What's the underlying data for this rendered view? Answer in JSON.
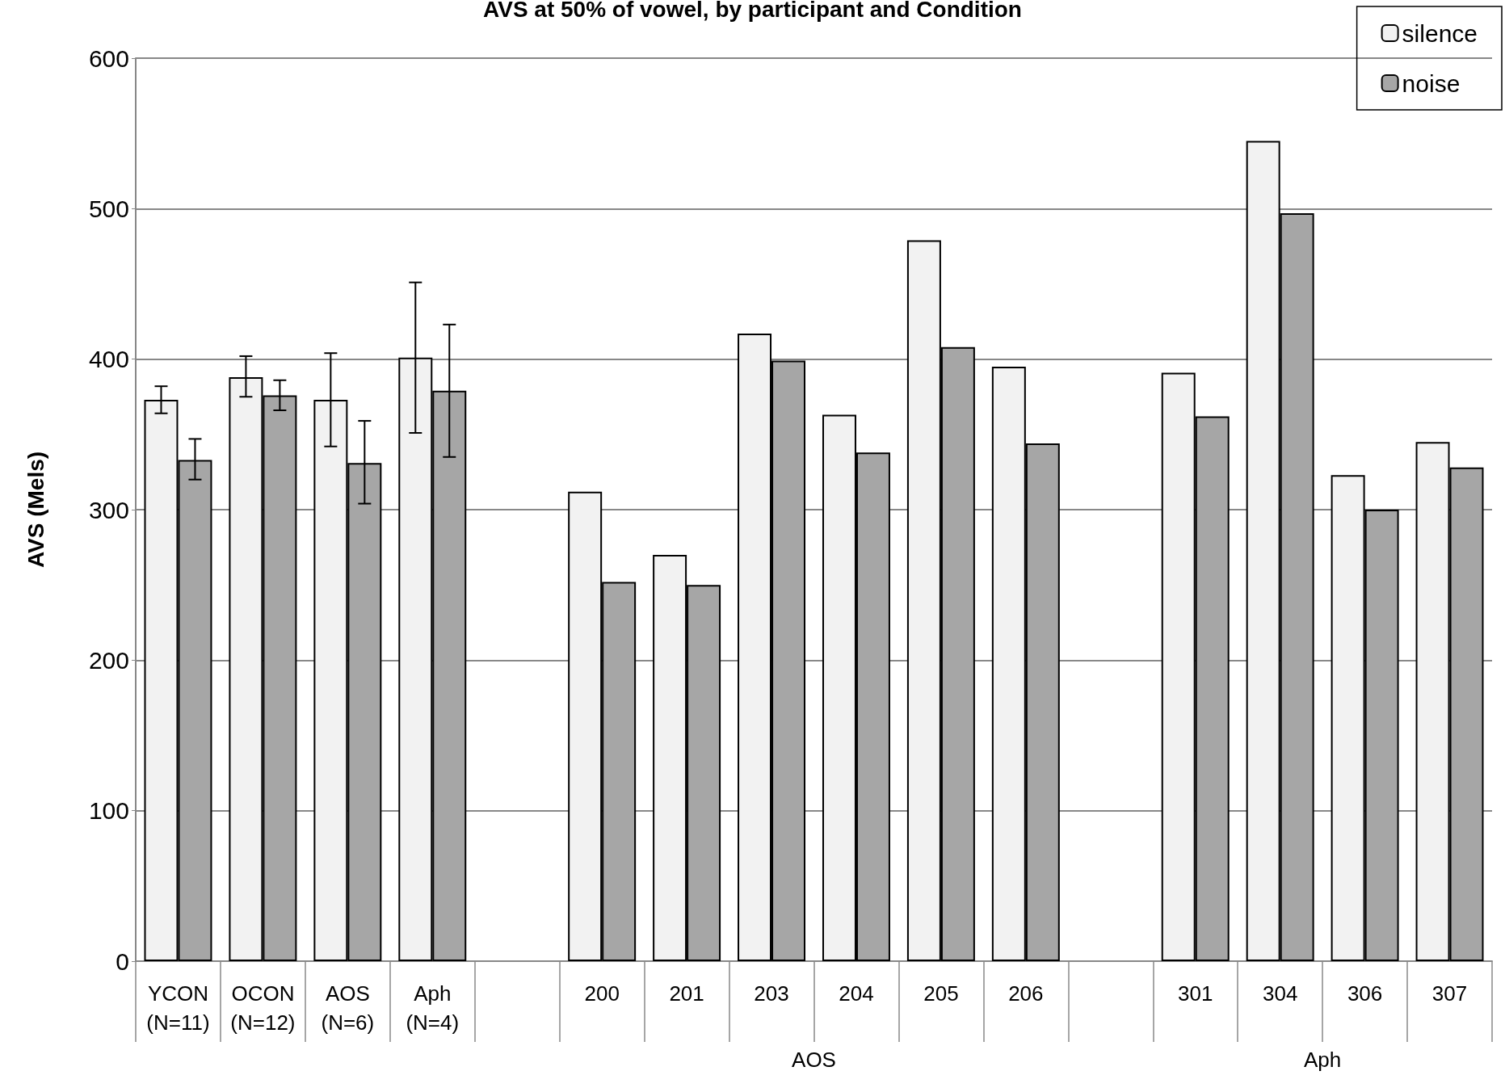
{
  "chart_data": {
    "type": "bar",
    "title": "AVS at 50% of vowel, by participant and Condition",
    "ylabel": "AVS (Mels)",
    "categories": [
      "YCON\n(N=11)",
      "OCON\n(N=12)",
      "AOS\n(N=6)",
      "Aph\n(N=4)",
      null,
      "200",
      "201",
      "203",
      "204",
      "205",
      "206",
      null,
      "301",
      "304",
      "306",
      "307"
    ],
    "series": [
      {
        "name": "silence",
        "color": "#f2f2f2",
        "values": [
          373,
          388,
          373,
          401,
          null,
          312,
          270,
          417,
          363,
          479,
          395,
          null,
          391,
          545,
          323,
          345
        ],
        "errors": [
          [
            364,
            382
          ],
          [
            375,
            402
          ],
          [
            342,
            404
          ],
          [
            351,
            451
          ],
          null,
          null,
          null,
          null,
          null,
          null,
          null,
          null,
          null,
          null,
          null,
          null
        ]
      },
      {
        "name": "noise",
        "color": "#a6a6a6",
        "values": [
          333,
          376,
          331,
          379,
          null,
          252,
          250,
          399,
          338,
          408,
          344,
          null,
          362,
          497,
          300,
          328
        ],
        "errors": [
          [
            320,
            347
          ],
          [
            366,
            386
          ],
          [
            304,
            359
          ],
          [
            335,
            423
          ],
          null,
          null,
          null,
          null,
          null,
          null,
          null,
          null,
          null,
          null,
          null,
          null
        ]
      }
    ],
    "ylim": [
      0,
      600
    ],
    "yticks": [
      0,
      100,
      200,
      300,
      400,
      500,
      600
    ],
    "grid": "y",
    "legend": "top right",
    "annotations": [
      "AOS",
      "Aph"
    ]
  }
}
